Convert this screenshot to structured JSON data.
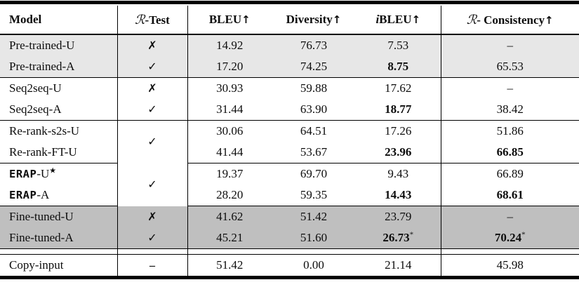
{
  "colors": {
    "band_light": "#e7e7e7",
    "band_dark": "#bfbfbf",
    "band_white": "#ffffff",
    "rule": "#000000"
  },
  "table": {
    "headers": [
      {
        "segments": [
          {
            "t": "Model"
          }
        ]
      },
      {
        "segments": [
          {
            "t": "ℛ",
            "script": 1
          },
          {
            "t": "-Test"
          }
        ]
      },
      {
        "segments": [
          {
            "t": "BLEU"
          },
          {
            "t": "↑",
            "arrow": 1
          }
        ]
      },
      {
        "segments": [
          {
            "t": "Diversity"
          },
          {
            "t": "↑",
            "arrow": 1
          }
        ]
      },
      {
        "segments": [
          {
            "t": "i",
            "italic": 1
          },
          {
            "t": "BLEU"
          },
          {
            "t": "↑",
            "arrow": 1
          }
        ]
      },
      {
        "segments": [
          {
            "t": "ℛ",
            "script": 1
          },
          {
            "t": "- Consistency"
          },
          {
            "t": "↑",
            "arrow": 1
          }
        ]
      }
    ],
    "groups": [
      {
        "bg": "band_light",
        "rows": [
          {
            "model": [
              {
                "t": "Pre-trained-U"
              }
            ],
            "test": "✗",
            "vals": [
              {
                "t": "14.92"
              },
              {
                "t": "76.73"
              },
              {
                "t": "7.53"
              },
              {
                "t": "–"
              }
            ]
          },
          {
            "model": [
              {
                "t": "Pre-trained-A"
              }
            ],
            "test": "✓",
            "vals": [
              {
                "t": "17.20"
              },
              {
                "t": "74.25"
              },
              {
                "t": "8.75",
                "b": 1
              },
              {
                "t": "65.53"
              }
            ]
          }
        ]
      },
      {
        "bg": "band_white",
        "rows": [
          {
            "model": [
              {
                "t": "Seq2seq-U"
              }
            ],
            "test": "✗",
            "vals": [
              {
                "t": "30.93"
              },
              {
                "t": "59.88"
              },
              {
                "t": "17.62"
              },
              {
                "t": "–"
              }
            ]
          },
          {
            "model": [
              {
                "t": "Seq2seq-A"
              }
            ],
            "test": "✓",
            "vals": [
              {
                "t": "31.44"
              },
              {
                "t": "63.90"
              },
              {
                "t": "18.77",
                "b": 1
              },
              {
                "t": "38.42"
              }
            ]
          }
        ]
      },
      {
        "bg": "band_white",
        "test_merged": "✓",
        "rows": [
          {
            "model": [
              {
                "t": "Re-rank-s2s-U"
              }
            ],
            "vals": [
              {
                "t": "30.06"
              },
              {
                "t": "64.51"
              },
              {
                "t": "17.26"
              },
              {
                "t": "51.86"
              }
            ]
          },
          {
            "model": [
              {
                "t": "Re-rank-FT-U"
              }
            ],
            "vals": [
              {
                "t": "41.44"
              },
              {
                "t": "53.67"
              },
              {
                "t": "23.96",
                "b": 1
              },
              {
                "t": "66.85",
                "b": 1
              }
            ]
          }
        ]
      },
      {
        "bg": "band_white",
        "test_merged": "✓",
        "rows": [
          {
            "model": [
              {
                "t": "ERAP",
                "mono": 1
              },
              {
                "t": "-U"
              },
              {
                "t": "★",
                "sup": 1
              }
            ],
            "vals": [
              {
                "t": "19.37"
              },
              {
                "t": "69.70"
              },
              {
                "t": "9.43"
              },
              {
                "t": "66.89"
              }
            ]
          },
          {
            "model": [
              {
                "t": "ERAP",
                "mono": 1
              },
              {
                "t": "-A"
              }
            ],
            "vals": [
              {
                "t": "28.20"
              },
              {
                "t": "59.35"
              },
              {
                "t": "14.43",
                "b": 1
              },
              {
                "t": "68.61",
                "b": 1
              }
            ]
          }
        ]
      },
      {
        "bg": "band_dark",
        "rows": [
          {
            "model": [
              {
                "t": "Fine-tuned-U"
              }
            ],
            "test": "✗",
            "vals": [
              {
                "t": "41.62"
              },
              {
                "t": "51.42"
              },
              {
                "t": "23.79"
              },
              {
                "t": "–"
              }
            ]
          },
          {
            "model": [
              {
                "t": "Fine-tuned-A"
              }
            ],
            "test": "✓",
            "vals": [
              {
                "t": "45.21"
              },
              {
                "t": "51.60"
              },
              {
                "t": "26.73",
                "b": 1,
                "sup": "*"
              },
              {
                "t": "70.24",
                "b": 1,
                "sup": "*"
              }
            ]
          }
        ]
      }
    ],
    "footer": {
      "model": [
        {
          "t": "Copy-input"
        }
      ],
      "test": "–",
      "vals": [
        {
          "t": "51.42"
        },
        {
          "t": "0.00"
        },
        {
          "t": "21.14"
        },
        {
          "t": "45.98"
        }
      ]
    }
  }
}
